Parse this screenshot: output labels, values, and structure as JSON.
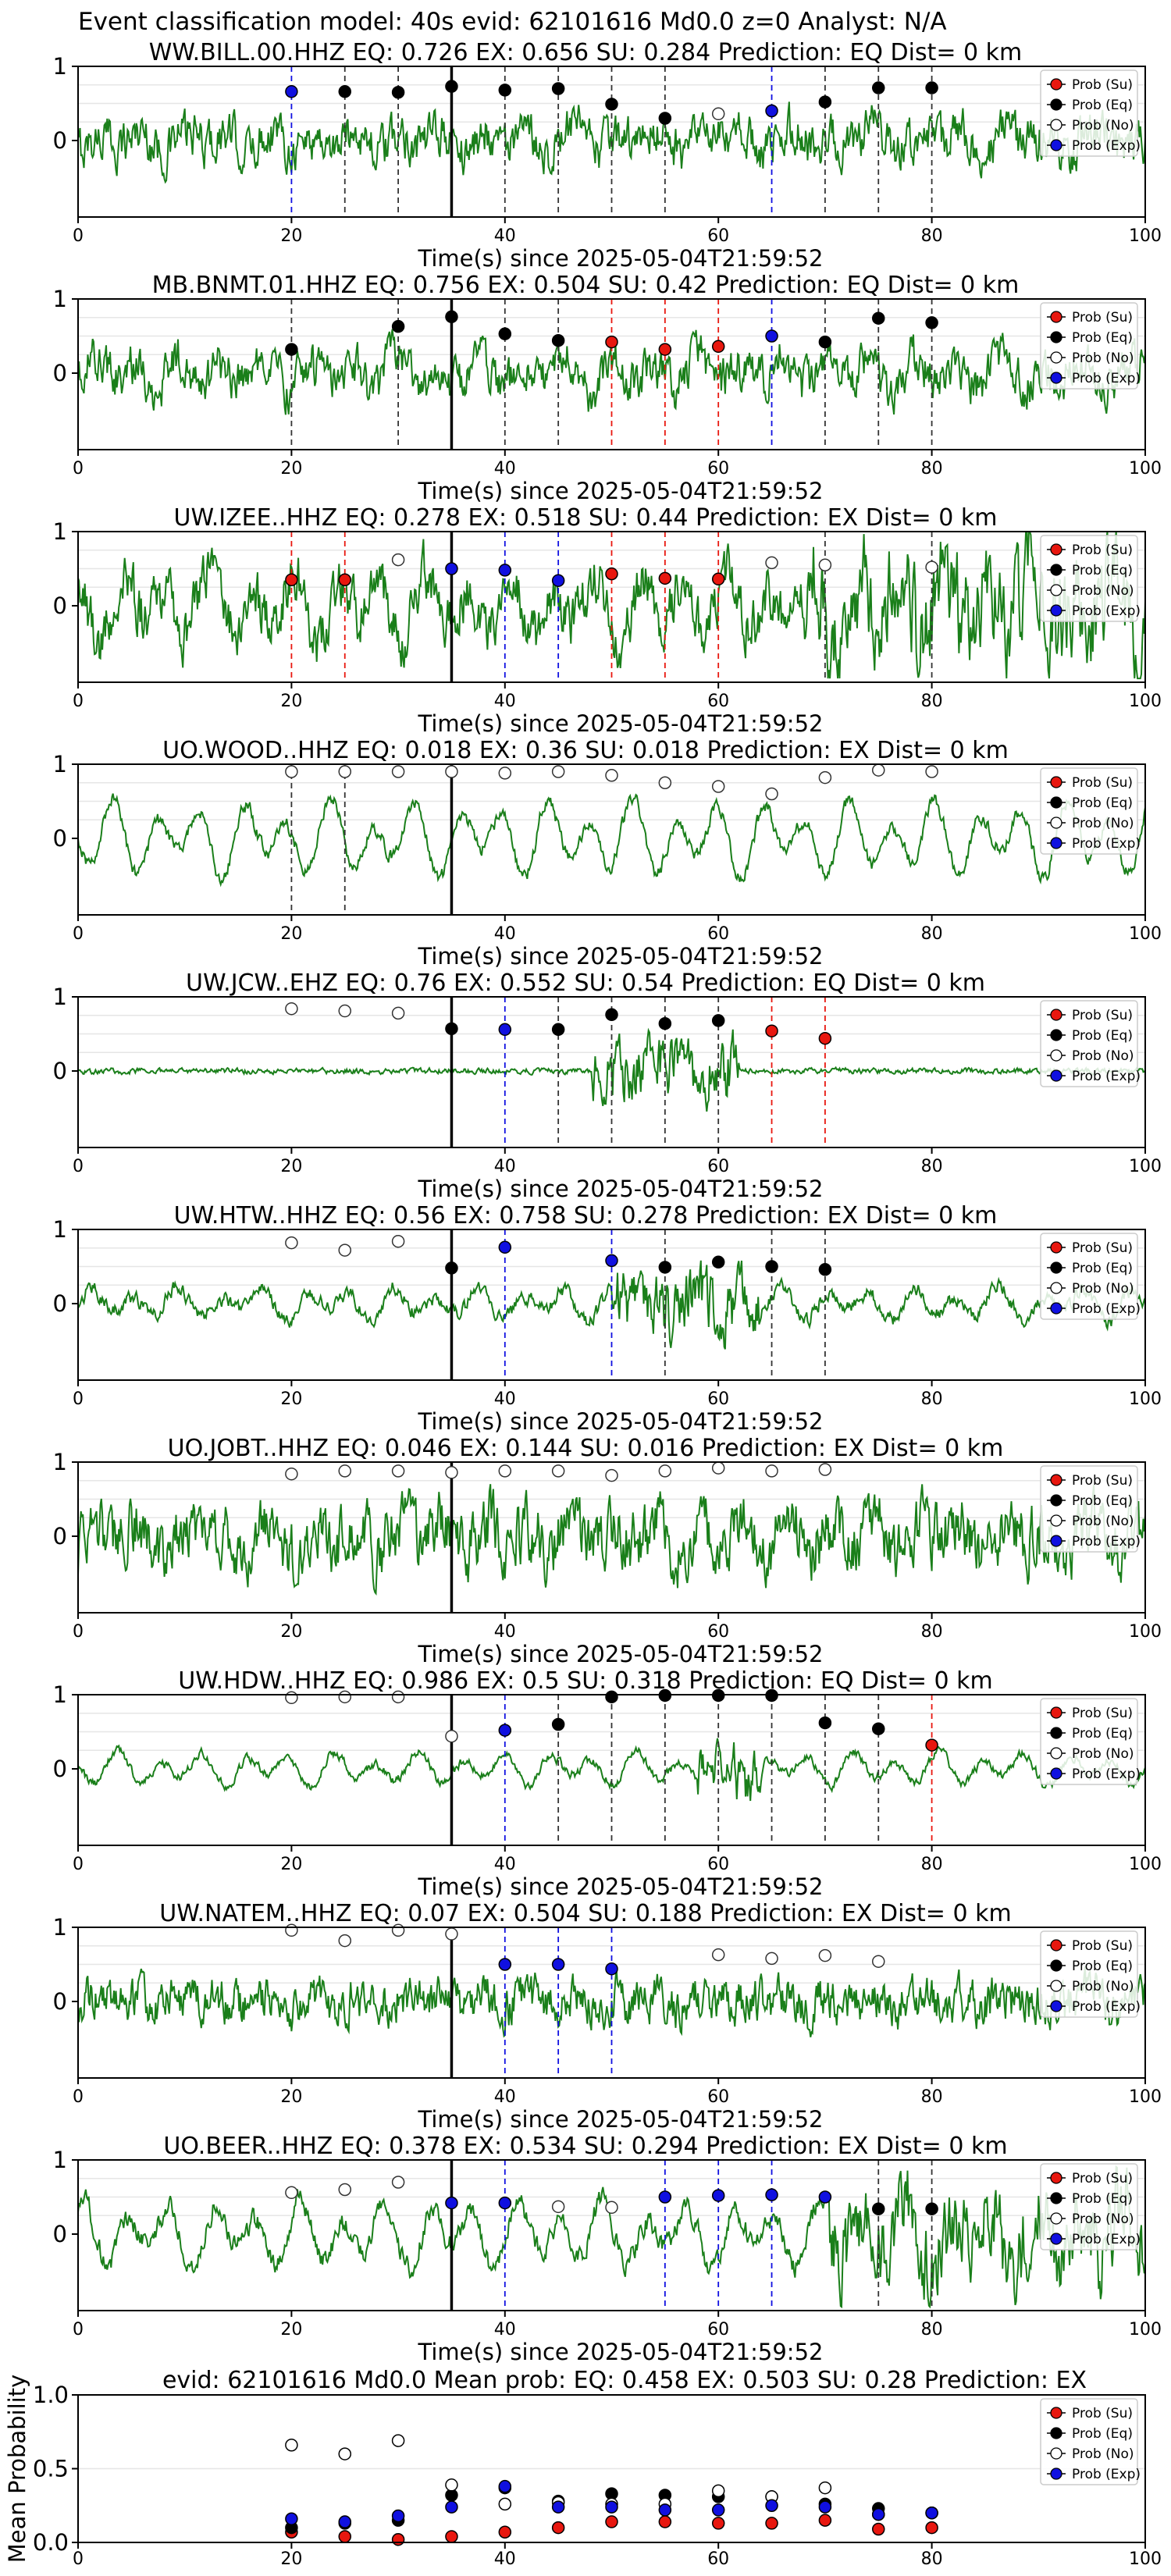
{
  "figure": {
    "suptitle": "Event classification model: 40s evid: 62101616 Md0.0 z=0 Analyst: N/A",
    "legend_labels": [
      "Prob (Su)",
      "Prob (Eq)",
      "Prob (No)",
      "Prob (Exp)"
    ],
    "colors": {
      "su": "#e8170f",
      "eq": "#000000",
      "no": "#ffffff",
      "exp": "#1010e0",
      "waveform": "#1a7f1a",
      "grid": "#e6e6e6"
    },
    "x_ticks": [
      0,
      20,
      40,
      60,
      80,
      100
    ],
    "x_label": "Time(s) since 2025-05-04T21:59:52",
    "y_ticks_station": [
      0,
      1
    ],
    "pick_time": 35,
    "style": {
      "waveform_noise": [
        0.25,
        0.25,
        0.3,
        0.08,
        0.03,
        0.08,
        0.35,
        0.05,
        0.25,
        0.12
      ],
      "waveform_osc": [
        0.1,
        0.15,
        0.3,
        0.35,
        0.0,
        0.15,
        0.15,
        0.15,
        0.05,
        0.3
      ]
    }
  },
  "chart_data": [
    {
      "type": "scatter",
      "title": "WW.BILL.00.HHZ   EQ: 0.726  EX: 0.656  SU: 0.284   Prediction: EQ    Dist= 0 km",
      "xlim": [
        0,
        100
      ],
      "ylim": [
        -1,
        1
      ],
      "vlines": [
        {
          "x": 20,
          "c": "exp"
        },
        {
          "x": 25,
          "c": "eq"
        },
        {
          "x": 30,
          "c": "eq"
        },
        {
          "x": 40,
          "c": "eq"
        },
        {
          "x": 45,
          "c": "eq"
        },
        {
          "x": 50,
          "c": "eq"
        },
        {
          "x": 55,
          "c": "eq"
        },
        {
          "x": 65,
          "c": "exp"
        },
        {
          "x": 70,
          "c": "eq"
        },
        {
          "x": 75,
          "c": "eq"
        },
        {
          "x": 80,
          "c": "eq"
        }
      ],
      "points": [
        {
          "x": 20,
          "y": 0.66,
          "c": "exp"
        },
        {
          "x": 25,
          "y": 0.66,
          "c": "eq"
        },
        {
          "x": 30,
          "y": 0.65,
          "c": "eq"
        },
        {
          "x": 35,
          "y": 0.73,
          "c": "eq"
        },
        {
          "x": 40,
          "y": 0.68,
          "c": "eq"
        },
        {
          "x": 45,
          "y": 0.7,
          "c": "eq"
        },
        {
          "x": 50,
          "y": 0.49,
          "c": "eq"
        },
        {
          "x": 55,
          "y": 0.3,
          "c": "eq"
        },
        {
          "x": 60,
          "y": 0.36,
          "c": "no"
        },
        {
          "x": 65,
          "y": 0.4,
          "c": "exp"
        },
        {
          "x": 70,
          "y": 0.52,
          "c": "eq"
        },
        {
          "x": 75,
          "y": 0.71,
          "c": "eq"
        },
        {
          "x": 80,
          "y": 0.71,
          "c": "eq"
        }
      ]
    },
    {
      "type": "scatter",
      "title": "MB.BNMT.01.HHZ   EQ: 0.756  EX: 0.504  SU: 0.42   Prediction: EQ    Dist= 0 km",
      "xlim": [
        0,
        100
      ],
      "ylim": [
        -1,
        1
      ],
      "vlines": [
        {
          "x": 20,
          "c": "eq"
        },
        {
          "x": 30,
          "c": "eq"
        },
        {
          "x": 40,
          "c": "eq"
        },
        {
          "x": 45,
          "c": "eq"
        },
        {
          "x": 50,
          "c": "su"
        },
        {
          "x": 55,
          "c": "su"
        },
        {
          "x": 60,
          "c": "su"
        },
        {
          "x": 65,
          "c": "exp"
        },
        {
          "x": 70,
          "c": "eq"
        },
        {
          "x": 75,
          "c": "eq"
        },
        {
          "x": 80,
          "c": "eq"
        }
      ],
      "points": [
        {
          "x": 20,
          "y": 0.32,
          "c": "eq"
        },
        {
          "x": 30,
          "y": 0.63,
          "c": "eq"
        },
        {
          "x": 35,
          "y": 0.76,
          "c": "eq"
        },
        {
          "x": 40,
          "y": 0.53,
          "c": "eq"
        },
        {
          "x": 45,
          "y": 0.44,
          "c": "eq"
        },
        {
          "x": 50,
          "y": 0.42,
          "c": "su"
        },
        {
          "x": 55,
          "y": 0.32,
          "c": "su"
        },
        {
          "x": 60,
          "y": 0.36,
          "c": "su"
        },
        {
          "x": 65,
          "y": 0.5,
          "c": "exp"
        },
        {
          "x": 70,
          "y": 0.42,
          "c": "eq"
        },
        {
          "x": 75,
          "y": 0.74,
          "c": "eq"
        },
        {
          "x": 80,
          "y": 0.68,
          "c": "eq"
        }
      ]
    },
    {
      "type": "scatter",
      "title": "UW.IZEE..HHZ   EQ: 0.278  EX: 0.518  SU: 0.44   Prediction: EX    Dist= 0 km",
      "xlim": [
        0,
        100
      ],
      "ylim": [
        -1,
        1
      ],
      "vlines": [
        {
          "x": 20,
          "c": "su"
        },
        {
          "x": 25,
          "c": "su"
        },
        {
          "x": 40,
          "c": "exp"
        },
        {
          "x": 45,
          "c": "exp"
        },
        {
          "x": 50,
          "c": "su"
        },
        {
          "x": 55,
          "c": "su"
        },
        {
          "x": 60,
          "c": "su"
        },
        {
          "x": 70,
          "c": "eq"
        },
        {
          "x": 80,
          "c": "eq"
        }
      ],
      "points": [
        {
          "x": 20,
          "y": 0.35,
          "c": "su"
        },
        {
          "x": 25,
          "y": 0.35,
          "c": "su"
        },
        {
          "x": 30,
          "y": 0.62,
          "c": "no"
        },
        {
          "x": 35,
          "y": 0.5,
          "c": "exp"
        },
        {
          "x": 40,
          "y": 0.48,
          "c": "exp"
        },
        {
          "x": 45,
          "y": 0.34,
          "c": "exp"
        },
        {
          "x": 50,
          "y": 0.43,
          "c": "su"
        },
        {
          "x": 55,
          "y": 0.37,
          "c": "su"
        },
        {
          "x": 60,
          "y": 0.36,
          "c": "su"
        },
        {
          "x": 65,
          "y": 0.58,
          "c": "no"
        },
        {
          "x": 70,
          "y": 0.55,
          "c": "no"
        },
        {
          "x": 80,
          "y": 0.52,
          "c": "no"
        }
      ]
    },
    {
      "type": "scatter",
      "title": "UO.WOOD..HHZ   EQ: 0.018  EX: 0.36  SU: 0.018   Prediction: EX    Dist= 0 km",
      "xlim": [
        0,
        100
      ],
      "ylim": [
        -1,
        1
      ],
      "vlines": [
        {
          "x": 20,
          "c": "eq"
        },
        {
          "x": 25,
          "c": "eq"
        }
      ],
      "points": [
        {
          "x": 20,
          "y": 0.9,
          "c": "no"
        },
        {
          "x": 25,
          "y": 0.9,
          "c": "no"
        },
        {
          "x": 30,
          "y": 0.9,
          "c": "no"
        },
        {
          "x": 35,
          "y": 0.9,
          "c": "no"
        },
        {
          "x": 40,
          "y": 0.88,
          "c": "no"
        },
        {
          "x": 45,
          "y": 0.9,
          "c": "no"
        },
        {
          "x": 50,
          "y": 0.85,
          "c": "no"
        },
        {
          "x": 55,
          "y": 0.75,
          "c": "no"
        },
        {
          "x": 60,
          "y": 0.7,
          "c": "no"
        },
        {
          "x": 65,
          "y": 0.6,
          "c": "no"
        },
        {
          "x": 70,
          "y": 0.82,
          "c": "no"
        },
        {
          "x": 75,
          "y": 0.92,
          "c": "no"
        },
        {
          "x": 80,
          "y": 0.9,
          "c": "no"
        }
      ]
    },
    {
      "type": "scatter",
      "title": "UW.JCW..EHZ   EQ: 0.76  EX: 0.552  SU: 0.54   Prediction: EQ    Dist= 0 km",
      "xlim": [
        0,
        100
      ],
      "ylim": [
        -1,
        1
      ],
      "vlines": [
        {
          "x": 40,
          "c": "exp"
        },
        {
          "x": 45,
          "c": "eq"
        },
        {
          "x": 50,
          "c": "eq"
        },
        {
          "x": 55,
          "c": "eq"
        },
        {
          "x": 60,
          "c": "eq"
        },
        {
          "x": 65,
          "c": "su"
        },
        {
          "x": 70,
          "c": "su"
        }
      ],
      "points": [
        {
          "x": 20,
          "y": 0.84,
          "c": "no"
        },
        {
          "x": 25,
          "y": 0.81,
          "c": "no"
        },
        {
          "x": 30,
          "y": 0.78,
          "c": "no"
        },
        {
          "x": 35,
          "y": 0.57,
          "c": "eq"
        },
        {
          "x": 40,
          "y": 0.56,
          "c": "exp"
        },
        {
          "x": 45,
          "y": 0.56,
          "c": "eq"
        },
        {
          "x": 50,
          "y": 0.76,
          "c": "eq"
        },
        {
          "x": 55,
          "y": 0.64,
          "c": "eq"
        },
        {
          "x": 60,
          "y": 0.68,
          "c": "eq"
        },
        {
          "x": 65,
          "y": 0.54,
          "c": "su"
        },
        {
          "x": 70,
          "y": 0.44,
          "c": "su"
        }
      ]
    },
    {
      "type": "scatter",
      "title": "UW.HTW..HHZ   EQ: 0.56  EX: 0.758  SU: 0.278   Prediction: EX    Dist= 0 km",
      "xlim": [
        0,
        100
      ],
      "ylim": [
        -1,
        1
      ],
      "vlines": [
        {
          "x": 40,
          "c": "exp"
        },
        {
          "x": 50,
          "c": "exp"
        },
        {
          "x": 55,
          "c": "eq"
        },
        {
          "x": 65,
          "c": "eq"
        },
        {
          "x": 70,
          "c": "eq"
        }
      ],
      "points": [
        {
          "x": 20,
          "y": 0.82,
          "c": "no"
        },
        {
          "x": 25,
          "y": 0.72,
          "c": "no"
        },
        {
          "x": 30,
          "y": 0.84,
          "c": "no"
        },
        {
          "x": 35,
          "y": 0.48,
          "c": "eq"
        },
        {
          "x": 40,
          "y": 0.76,
          "c": "exp"
        },
        {
          "x": 50,
          "y": 0.58,
          "c": "exp"
        },
        {
          "x": 55,
          "y": 0.49,
          "c": "eq"
        },
        {
          "x": 60,
          "y": 0.56,
          "c": "eq"
        },
        {
          "x": 65,
          "y": 0.5,
          "c": "eq"
        },
        {
          "x": 70,
          "y": 0.46,
          "c": "eq"
        }
      ]
    },
    {
      "type": "scatter",
      "title": "UO.JOBT..HHZ   EQ: 0.046  EX: 0.144  SU: 0.016   Prediction: EX    Dist= 0 km",
      "xlim": [
        0,
        100
      ],
      "ylim": [
        -1,
        1
      ],
      "vlines": [],
      "points": [
        {
          "x": 20,
          "y": 0.84,
          "c": "no"
        },
        {
          "x": 25,
          "y": 0.88,
          "c": "no"
        },
        {
          "x": 30,
          "y": 0.88,
          "c": "no"
        },
        {
          "x": 35,
          "y": 0.86,
          "c": "no"
        },
        {
          "x": 40,
          "y": 0.88,
          "c": "no"
        },
        {
          "x": 45,
          "y": 0.88,
          "c": "no"
        },
        {
          "x": 50,
          "y": 0.82,
          "c": "no"
        },
        {
          "x": 55,
          "y": 0.88,
          "c": "no"
        },
        {
          "x": 60,
          "y": 0.92,
          "c": "no"
        },
        {
          "x": 65,
          "y": 0.88,
          "c": "no"
        },
        {
          "x": 70,
          "y": 0.9,
          "c": "no"
        }
      ]
    },
    {
      "type": "scatter",
      "title": "UW.HDW..HHZ   EQ: 0.986  EX: 0.5  SU: 0.318   Prediction: EQ    Dist= 0 km",
      "xlim": [
        0,
        100
      ],
      "ylim": [
        -1,
        1
      ],
      "vlines": [
        {
          "x": 40,
          "c": "exp"
        },
        {
          "x": 45,
          "c": "eq"
        },
        {
          "x": 50,
          "c": "eq"
        },
        {
          "x": 55,
          "c": "eq"
        },
        {
          "x": 60,
          "c": "eq"
        },
        {
          "x": 65,
          "c": "eq"
        },
        {
          "x": 70,
          "c": "eq"
        },
        {
          "x": 75,
          "c": "eq"
        },
        {
          "x": 80,
          "c": "su"
        }
      ],
      "points": [
        {
          "x": 20,
          "y": 0.96,
          "c": "no"
        },
        {
          "x": 25,
          "y": 0.97,
          "c": "no"
        },
        {
          "x": 30,
          "y": 0.97,
          "c": "no"
        },
        {
          "x": 35,
          "y": 0.44,
          "c": "no"
        },
        {
          "x": 40,
          "y": 0.52,
          "c": "exp"
        },
        {
          "x": 45,
          "y": 0.6,
          "c": "eq"
        },
        {
          "x": 50,
          "y": 0.97,
          "c": "eq"
        },
        {
          "x": 55,
          "y": 0.99,
          "c": "eq"
        },
        {
          "x": 60,
          "y": 0.99,
          "c": "eq"
        },
        {
          "x": 65,
          "y": 0.99,
          "c": "eq"
        },
        {
          "x": 70,
          "y": 0.62,
          "c": "eq"
        },
        {
          "x": 75,
          "y": 0.54,
          "c": "eq"
        },
        {
          "x": 80,
          "y": 0.32,
          "c": "su"
        }
      ]
    },
    {
      "type": "scatter",
      "title": "UW.NATEM..HHZ   EQ: 0.07  EX: 0.504  SU: 0.188   Prediction: EX    Dist= 0 km",
      "xlim": [
        0,
        100
      ],
      "ylim": [
        -1,
        1
      ],
      "vlines": [
        {
          "x": 40,
          "c": "exp"
        },
        {
          "x": 45,
          "c": "exp"
        },
        {
          "x": 50,
          "c": "exp"
        }
      ],
      "points": [
        {
          "x": 20,
          "y": 0.96,
          "c": "no"
        },
        {
          "x": 25,
          "y": 0.82,
          "c": "no"
        },
        {
          "x": 30,
          "y": 0.96,
          "c": "no"
        },
        {
          "x": 35,
          "y": 0.91,
          "c": "no"
        },
        {
          "x": 40,
          "y": 0.5,
          "c": "exp"
        },
        {
          "x": 45,
          "y": 0.5,
          "c": "exp"
        },
        {
          "x": 50,
          "y": 0.44,
          "c": "exp"
        },
        {
          "x": 60,
          "y": 0.63,
          "c": "no"
        },
        {
          "x": 65,
          "y": 0.58,
          "c": "no"
        },
        {
          "x": 70,
          "y": 0.62,
          "c": "no"
        },
        {
          "x": 75,
          "y": 0.54,
          "c": "no"
        }
      ]
    },
    {
      "type": "scatter",
      "title": "UO.BEER..HHZ   EQ: 0.378  EX: 0.534  SU: 0.294   Prediction: EX    Dist= 0 km",
      "xlim": [
        0,
        100
      ],
      "ylim": [
        -1,
        1
      ],
      "vlines": [
        {
          "x": 40,
          "c": "exp"
        },
        {
          "x": 55,
          "c": "exp"
        },
        {
          "x": 60,
          "c": "exp"
        },
        {
          "x": 65,
          "c": "exp"
        },
        {
          "x": 75,
          "c": "eq"
        },
        {
          "x": 80,
          "c": "eq"
        }
      ],
      "points": [
        {
          "x": 20,
          "y": 0.56,
          "c": "no"
        },
        {
          "x": 25,
          "y": 0.6,
          "c": "no"
        },
        {
          "x": 30,
          "y": 0.7,
          "c": "no"
        },
        {
          "x": 35,
          "y": 0.42,
          "c": "exp"
        },
        {
          "x": 40,
          "y": 0.42,
          "c": "exp"
        },
        {
          "x": 45,
          "y": 0.37,
          "c": "no"
        },
        {
          "x": 50,
          "y": 0.36,
          "c": "no"
        },
        {
          "x": 55,
          "y": 0.5,
          "c": "exp"
        },
        {
          "x": 60,
          "y": 0.52,
          "c": "exp"
        },
        {
          "x": 65,
          "y": 0.53,
          "c": "exp"
        },
        {
          "x": 70,
          "y": 0.5,
          "c": "exp"
        },
        {
          "x": 75,
          "y": 0.34,
          "c": "eq"
        },
        {
          "x": 80,
          "y": 0.34,
          "c": "eq"
        }
      ]
    },
    {
      "type": "scatter",
      "title": "evid: 62101616  Md0.0   Mean prob:   EQ: 0.458  EX: 0.503  SU: 0.28   Prediction: EX",
      "ylabel": "Mean Probability",
      "xlim": [
        0,
        100
      ],
      "ylim": [
        0,
        1
      ],
      "yticks": [
        0.0,
        0.5,
        1.0
      ],
      "x": [
        20,
        25,
        30,
        35,
        40,
        45,
        50,
        55,
        60,
        65,
        70,
        75,
        80
      ],
      "series": [
        {
          "name": "Prob (Su)",
          "values": [
            0.07,
            0.04,
            0.02,
            0.04,
            0.07,
            0.1,
            0.14,
            0.14,
            0.13,
            0.13,
            0.15,
            0.09,
            0.1
          ]
        },
        {
          "name": "Prob (Eq)",
          "values": [
            0.1,
            0.13,
            0.15,
            0.32,
            0.37,
            0.28,
            0.33,
            0.32,
            0.31,
            0.31,
            0.26,
            0.23,
            0.2
          ]
        },
        {
          "name": "Prob (No)",
          "values": [
            0.66,
            0.6,
            0.69,
            0.39,
            0.26,
            0.27,
            0.26,
            0.26,
            0.35,
            0.31,
            0.37,
            0.19,
            0.2
          ]
        },
        {
          "name": "Prob (Exp)",
          "values": [
            0.16,
            0.14,
            0.18,
            0.24,
            0.38,
            0.24,
            0.24,
            0.22,
            0.22,
            0.25,
            0.24,
            0.19,
            0.2
          ]
        }
      ]
    }
  ]
}
